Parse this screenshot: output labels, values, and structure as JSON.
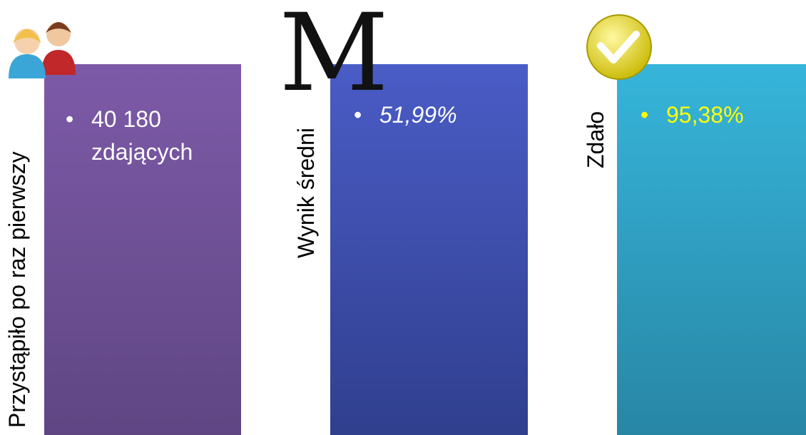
{
  "panels": [
    {
      "label": "Przystąpiło po raz pierwszy",
      "value_lines": [
        "40 180",
        "zdających"
      ]
    },
    {
      "label": "Wynik średni",
      "icon": "M",
      "value_lines": [
        "51,99%"
      ]
    },
    {
      "label": "Zdało",
      "value_lines": [
        "95,38%"
      ]
    }
  ]
}
